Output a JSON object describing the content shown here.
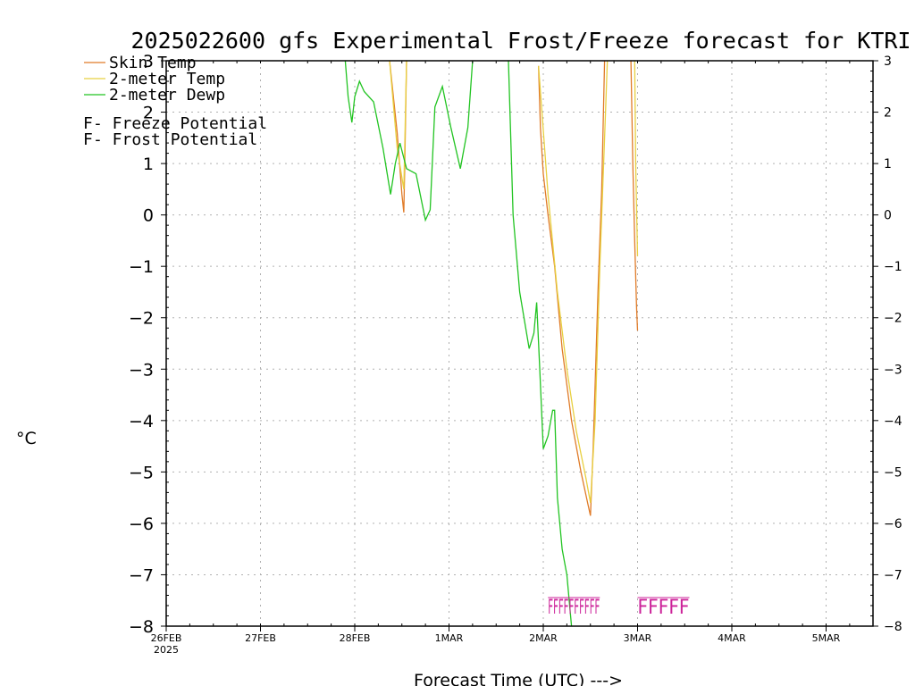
{
  "chart_data": {
    "type": "line",
    "title": "2025022600 gfs Experimental Frost/Freeze forecast for KTRI",
    "xlabel": "Forecast Time (UTC) --->",
    "ylabel": "°C",
    "ylim": [
      -8,
      3
    ],
    "xlim": [
      "2025-02-26 00Z",
      "2025-03-05 12Z"
    ],
    "y_ticks": [
      "-8",
      "-7",
      "-6",
      "-5",
      "-4",
      "-3",
      "-2",
      "-1",
      "0",
      "1",
      "2",
      "3"
    ],
    "x_ticks": [
      {
        "label": "26FEB",
        "sublabel": "2025",
        "day": 0
      },
      {
        "label": "27FEB",
        "sublabel": "",
        "day": 1
      },
      {
        "label": "28FEB",
        "sublabel": "",
        "day": 2
      },
      {
        "label": "1MAR",
        "sublabel": "",
        "day": 3
      },
      {
        "label": "2MAR",
        "sublabel": "",
        "day": 4
      },
      {
        "label": "3MAR",
        "sublabel": "",
        "day": 5
      },
      {
        "label": "4MAR",
        "sublabel": "",
        "day": 6
      },
      {
        "label": "5MAR",
        "sublabel": "",
        "day": 7
      }
    ],
    "grid": true,
    "legend_position": "top-left",
    "series": [
      {
        "name": "Skin Temp",
        "color": "#e07b28",
        "segments": [
          [
            [
              2.37,
              3.0
            ],
            [
              2.45,
              1.6
            ],
            [
              2.5,
              0.4
            ],
            [
              2.52,
              0.05
            ],
            [
              2.53,
              0.9
            ],
            [
              2.55,
              3.0
            ]
          ],
          [
            [
              3.95,
              2.9
            ],
            [
              3.97,
              1.7
            ],
            [
              4.0,
              0.8
            ],
            [
              4.05,
              0.0
            ],
            [
              4.12,
              -1.0
            ],
            [
              4.2,
              -2.6
            ],
            [
              4.3,
              -4.0
            ],
            [
              4.4,
              -5.0
            ],
            [
              4.47,
              -5.6
            ],
            [
              4.5,
              -5.85
            ],
            [
              4.53,
              -4.5
            ],
            [
              4.58,
              -1.5
            ],
            [
              4.62,
              0.5
            ],
            [
              4.65,
              3.0
            ]
          ],
          [
            [
              4.93,
              3.0
            ],
            [
              4.95,
              1.0
            ],
            [
              4.97,
              -0.5
            ],
            [
              4.99,
              -1.8
            ],
            [
              5.0,
              -2.25
            ]
          ]
        ]
      },
      {
        "name": "2-meter Temp",
        "color": "#e8d040",
        "segments": [
          [
            [
              2.37,
              3.0
            ],
            [
              2.45,
              1.3
            ],
            [
              2.52,
              0.5
            ],
            [
              2.55,
              3.0
            ]
          ],
          [
            [
              3.95,
              2.9
            ],
            [
              4.05,
              0.4
            ],
            [
              4.15,
              -1.5
            ],
            [
              4.25,
              -3.0
            ],
            [
              4.35,
              -4.2
            ],
            [
              4.45,
              -5.1
            ],
            [
              4.5,
              -5.6
            ],
            [
              4.55,
              -4.0
            ],
            [
              4.6,
              -1.0
            ],
            [
              4.65,
              1.5
            ],
            [
              4.68,
              3.0
            ]
          ],
          [
            [
              4.97,
              3.0
            ],
            [
              4.98,
              1.0
            ],
            [
              5.0,
              -0.8
            ]
          ]
        ]
      },
      {
        "name": "2-meter Dewp",
        "color": "#22c422",
        "segments": [
          [
            [
              1.9,
              3.0
            ],
            [
              1.93,
              2.3
            ],
            [
              1.97,
              1.8
            ],
            [
              2.0,
              2.3
            ],
            [
              2.05,
              2.6
            ],
            [
              2.1,
              2.4
            ],
            [
              2.2,
              2.2
            ],
            [
              2.3,
              1.3
            ],
            [
              2.38,
              0.4
            ],
            [
              2.43,
              1.0
            ],
            [
              2.48,
              1.4
            ],
            [
              2.55,
              0.9
            ],
            [
              2.65,
              0.8
            ],
            [
              2.75,
              -0.1
            ],
            [
              2.8,
              0.1
            ],
            [
              2.85,
              2.1
            ],
            [
              2.93,
              2.5
            ],
            [
              3.02,
              1.7
            ],
            [
              3.12,
              0.9
            ],
            [
              3.2,
              1.7
            ],
            [
              3.25,
              3.0
            ]
          ],
          [
            [
              3.63,
              3.0
            ],
            [
              3.68,
              0.0
            ],
            [
              3.75,
              -1.5
            ],
            [
              3.85,
              -2.6
            ],
            [
              3.9,
              -2.3
            ],
            [
              3.93,
              -1.7
            ],
            [
              3.96,
              -2.9
            ],
            [
              4.0,
              -4.55
            ],
            [
              4.05,
              -4.3
            ],
            [
              4.1,
              -3.8
            ],
            [
              4.12,
              -3.8
            ],
            [
              4.15,
              -5.5
            ],
            [
              4.2,
              -6.5
            ],
            [
              4.25,
              -7.0
            ],
            [
              4.3,
              -8.0
            ]
          ]
        ]
      }
    ],
    "annotations": [
      {
        "name": "Freeze Potential",
        "marker": "F",
        "color": "#cc2299",
        "marks": "FFFFFFFFFF",
        "start_day": 4.05,
        "end_day": 4.6,
        "y": -7.6
      },
      {
        "name": "Freeze Potential",
        "marker": "F",
        "color": "#cc2299",
        "marks": "FFFFF",
        "start_day": 5.0,
        "end_day": 5.55,
        "y": -7.6
      }
    ],
    "legend_entries": [
      {
        "label": "Skin Temp",
        "color": "#e07b28",
        "type": "line"
      },
      {
        "label": "2-meter Temp",
        "color": "#e8d040",
        "type": "line"
      },
      {
        "label": "2-meter Dewp",
        "color": "#22c422",
        "type": "line"
      },
      {
        "marker": "F",
        "label": " - Freeze Potential",
        "color": "#cc2299",
        "type": "marker"
      },
      {
        "marker": "F",
        "label": " - Frost Potential",
        "color": "#3344ee",
        "type": "marker"
      }
    ]
  }
}
